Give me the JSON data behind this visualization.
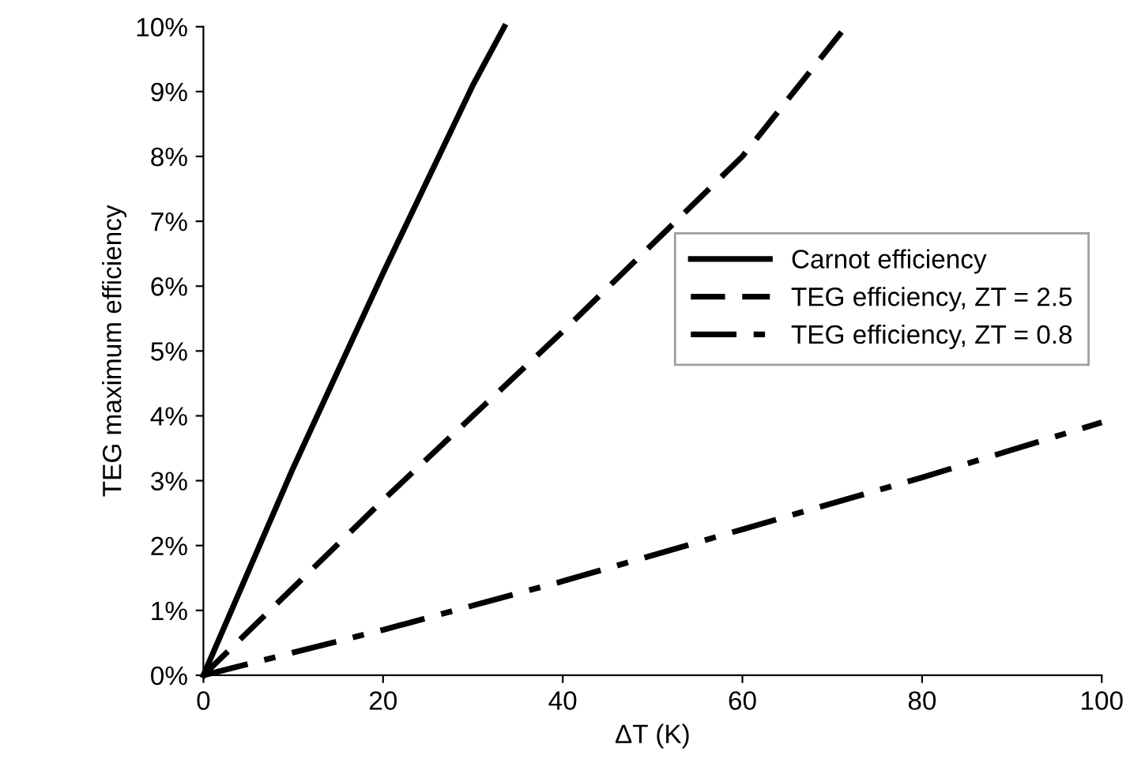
{
  "chart_data": {
    "type": "line",
    "xlabel": "ΔT (K)",
    "ylabel": "TEG maximum efficiency",
    "xlim": [
      0,
      100
    ],
    "xticks": [
      0,
      20,
      40,
      60,
      80,
      100
    ],
    "ylim": [
      0,
      10
    ],
    "yticks": [
      {
        "value": 0,
        "label": "0%"
      },
      {
        "value": 1,
        "label": "1%"
      },
      {
        "value": 2,
        "label": "2%"
      },
      {
        "value": 3,
        "label": "3%"
      },
      {
        "value": 4,
        "label": "4%"
      },
      {
        "value": 5,
        "label": "5%"
      },
      {
        "value": 6,
        "label": "6%"
      },
      {
        "value": 7,
        "label": "7%"
      },
      {
        "value": 8,
        "label": "8%"
      },
      {
        "value": 9,
        "label": "9%"
      },
      {
        "value": 10,
        "label": "10%"
      }
    ],
    "grid": false,
    "legend": "right",
    "marker": "none",
    "series": [
      {
        "name": "Carnot efficiency",
        "color": "#000000",
        "line_style": "solid",
        "x": [
          0,
          10,
          20,
          30,
          33.5
        ],
        "values": [
          0,
          3.2,
          6.2,
          9.1,
          10
        ]
      },
      {
        "name": "TEG efficiency, ZT = 2.5",
        "color": "#000000",
        "line_style": "dashed",
        "x": [
          0,
          20,
          40,
          60,
          71.5
        ],
        "values": [
          0,
          2.7,
          5.3,
          8.0,
          10
        ]
      },
      {
        "name": "TEG efficiency, ZT = 0.8",
        "color": "#000000",
        "line_style": "dashdot",
        "x": [
          0,
          20,
          40,
          60,
          80,
          100
        ],
        "values": [
          0,
          0.7,
          1.45,
          2.25,
          3.05,
          3.9
        ]
      }
    ]
  }
}
